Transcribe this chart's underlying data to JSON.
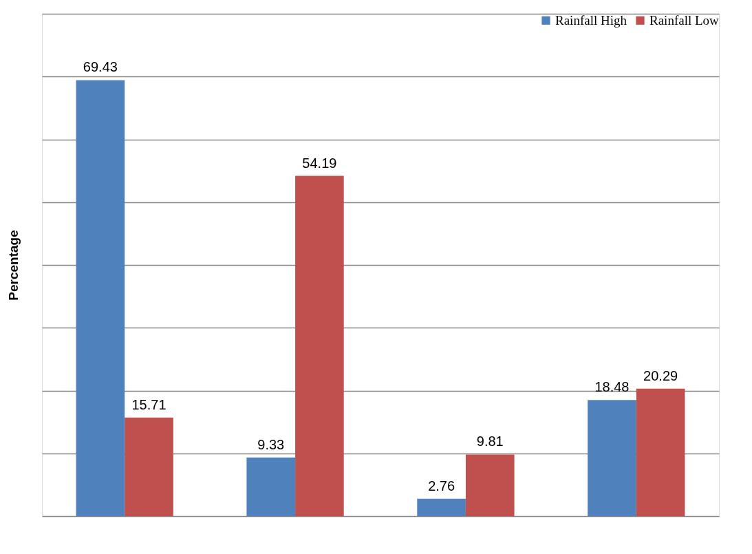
{
  "chart_data": {
    "type": "bar",
    "ylabel": "Percentage",
    "categories": [
      null,
      null,
      null,
      null
    ],
    "series": [
      {
        "name": "Rainfall High",
        "color": "#4f81bd",
        "values": [
          69.43,
          9.33,
          2.76,
          18.48
        ]
      },
      {
        "name": "Rainfall Low",
        "color": "#c0504d",
        "values": [
          15.71,
          54.19,
          9.81,
          20.29
        ]
      }
    ],
    "ylim": [
      0,
      80
    ],
    "yticks": [
      {
        "value": 0,
        "label": null
      },
      {
        "value": 10,
        "label": null
      },
      {
        "value": 20,
        "label": null
      },
      {
        "value": 30,
        "label": null
      },
      {
        "value": 40,
        "label": null
      },
      {
        "value": 50,
        "label": null
      },
      {
        "value": 60,
        "label": null
      },
      {
        "value": 70,
        "label": null
      },
      {
        "value": 80,
        "label": null
      }
    ],
    "grid": "y",
    "legend": "top right",
    "data_labels": true
  }
}
